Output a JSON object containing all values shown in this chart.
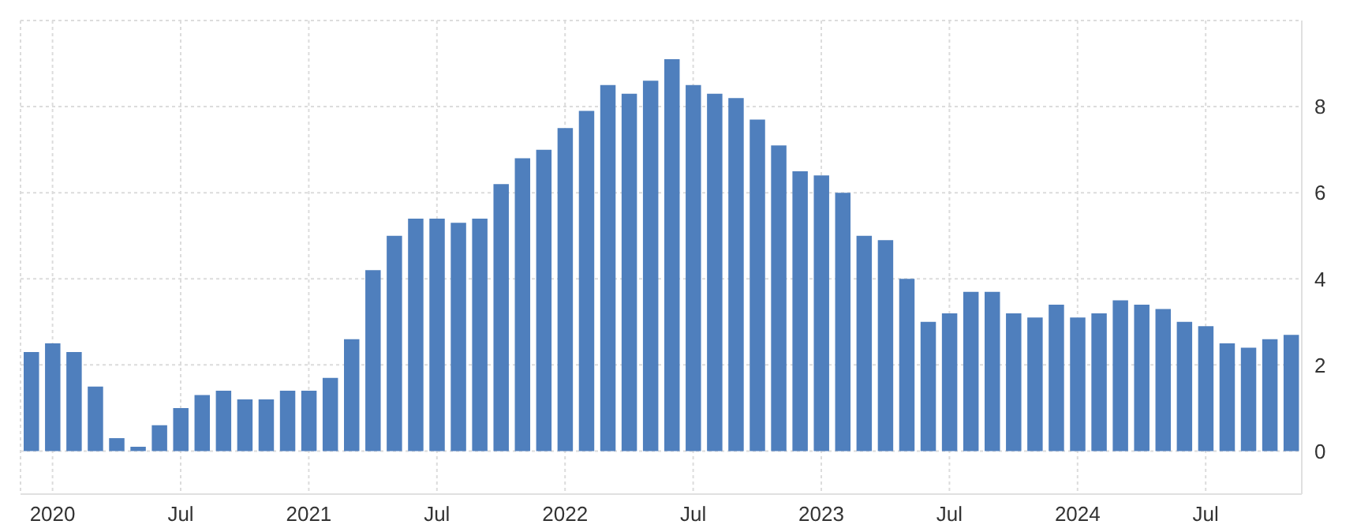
{
  "chart_data": {
    "type": "bar",
    "x": [
      "2019-12",
      "2020-01",
      "2020-02",
      "2020-03",
      "2020-04",
      "2020-05",
      "2020-06",
      "2020-07",
      "2020-08",
      "2020-09",
      "2020-10",
      "2020-11",
      "2020-12",
      "2021-01",
      "2021-02",
      "2021-03",
      "2021-04",
      "2021-05",
      "2021-06",
      "2021-07",
      "2021-08",
      "2021-09",
      "2021-10",
      "2021-11",
      "2021-12",
      "2022-01",
      "2022-02",
      "2022-03",
      "2022-04",
      "2022-05",
      "2022-06",
      "2022-07",
      "2022-08",
      "2022-09",
      "2022-10",
      "2022-11",
      "2022-12",
      "2023-01",
      "2023-02",
      "2023-03",
      "2023-04",
      "2023-05",
      "2023-06",
      "2023-07",
      "2023-08",
      "2023-09",
      "2023-10",
      "2023-11",
      "2023-12",
      "2024-01",
      "2024-02",
      "2024-03",
      "2024-04",
      "2024-05",
      "2024-06",
      "2024-07",
      "2024-08",
      "2024-09",
      "2024-10",
      "2024-11"
    ],
    "values": [
      2.3,
      2.5,
      2.3,
      1.5,
      0.3,
      0.1,
      0.6,
      1.0,
      1.3,
      1.4,
      1.2,
      1.2,
      1.4,
      1.4,
      1.7,
      2.6,
      4.2,
      5.0,
      5.4,
      5.4,
      5.3,
      5.4,
      6.2,
      6.8,
      7.0,
      7.5,
      7.9,
      8.5,
      8.3,
      8.6,
      9.1,
      8.5,
      8.3,
      8.2,
      7.7,
      7.1,
      6.5,
      6.4,
      6.0,
      5.0,
      4.9,
      4.0,
      3.0,
      3.2,
      3.7,
      3.7,
      3.2,
      3.1,
      3.4,
      3.1,
      3.2,
      3.5,
      3.4,
      3.3,
      3.0,
      2.9,
      2.5,
      2.4,
      2.6,
      2.7
    ],
    "color": "#4f7fbd",
    "xlim": [
      "2019-11-16",
      "2024-11-16"
    ],
    "xticks": [
      {
        "value": "2020-01",
        "label": "2020"
      },
      {
        "value": "2020-07",
        "label": "Jul"
      },
      {
        "value": "2021-01",
        "label": "2021"
      },
      {
        "value": "2021-07",
        "label": "Jul"
      },
      {
        "value": "2022-01",
        "label": "2022"
      },
      {
        "value": "2022-07",
        "label": "Jul"
      },
      {
        "value": "2023-01",
        "label": "2023"
      },
      {
        "value": "2023-07",
        "label": "Jul"
      },
      {
        "value": "2024-01",
        "label": "2024"
      },
      {
        "value": "2024-07",
        "label": "Jul"
      }
    ],
    "ylim": [
      -1,
      10
    ],
    "yticks": [
      0,
      2,
      4,
      6,
      8
    ],
    "grid": true
  }
}
